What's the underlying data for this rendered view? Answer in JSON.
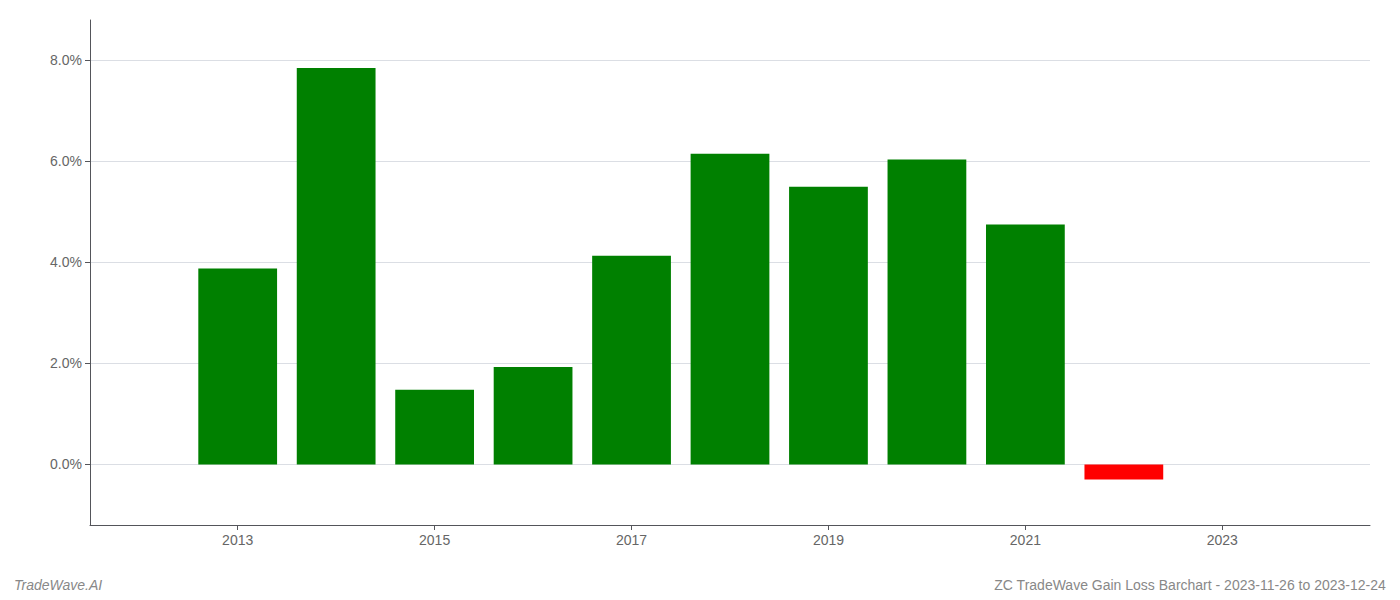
{
  "chart_data": {
    "type": "bar",
    "x": [
      2013,
      2014,
      2015,
      2016,
      2017,
      2018,
      2019,
      2020,
      2021,
      2022
    ],
    "values": [
      0.0388,
      0.0785,
      0.0148,
      0.0193,
      0.0413,
      0.0615,
      0.055,
      0.0604,
      0.0475,
      -0.003
    ],
    "colors": [
      "#008000",
      "#008000",
      "#008000",
      "#008000",
      "#008000",
      "#008000",
      "#008000",
      "#008000",
      "#008000",
      "#ff0000"
    ],
    "xlim": [
      2011.5,
      2024.5
    ],
    "xticks": [
      2013,
      2015,
      2017,
      2019,
      2021,
      2023
    ],
    "ylim": [
      -0.012,
      0.088
    ],
    "yticks": [
      {
        "value": 0.0,
        "label": "0.0%"
      },
      {
        "value": 0.02,
        "label": "2.0%"
      },
      {
        "value": 0.04,
        "label": "4.0%"
      },
      {
        "value": 0.06,
        "label": "6.0%"
      },
      {
        "value": 0.08,
        "label": "8.0%"
      }
    ],
    "grid": true,
    "annotations": [
      "TradeWave.AI",
      "ZC TradeWave Gain Loss Barchart - 2023-11-26 to 2023-12-24"
    ]
  }
}
